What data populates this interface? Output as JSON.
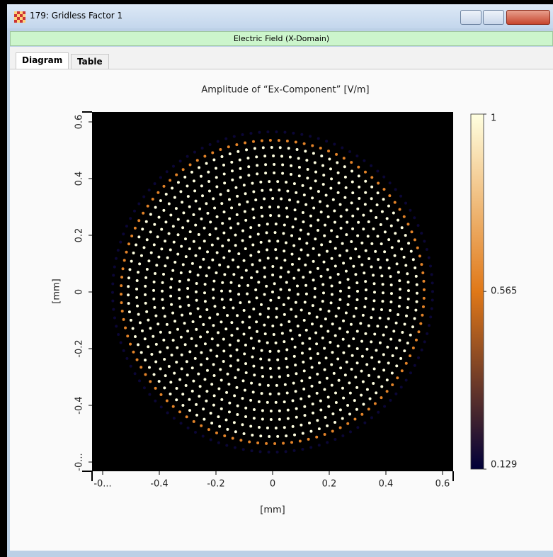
{
  "window": {
    "title": "179: Gridless Factor 1"
  },
  "header": "Electric Field (X-Domain)",
  "tabs": [
    "Diagram",
    "Table"
  ],
  "chart_data": {
    "type": "heatmap",
    "title": "Amplitude of “Ex-Component”  [V/m]",
    "x_label": "[mm]",
    "y_label": "[mm]",
    "xlim": [
      -0.6375,
      0.6375
    ],
    "ylim": [
      -0.6325,
      0.635
    ],
    "xticks": [
      {
        "value": -0.6,
        "label": "-0..."
      },
      -0.4,
      -0.2,
      0,
      0.2,
      0.4,
      0.6
    ],
    "yticks": [
      {
        "value": -0.6,
        "label": "-0..."
      },
      -0.4,
      -0.2,
      0,
      0.2,
      0.4,
      0.6
    ],
    "zlim": [
      0.129,
      1
    ],
    "zticks": [
      1,
      0.565,
      0.129
    ],
    "colormap": [
      "#000038",
      "#e07818",
      "#ffffe0"
    ],
    "background": "#000000",
    "rings": [
      {
        "radius": 0,
        "value": 1
      },
      {
        "radius": 0.03,
        "value": 1
      },
      {
        "radius": 0.06,
        "value": 1
      },
      {
        "radius": 0.09,
        "value": 1
      },
      {
        "radius": 0.12,
        "value": 1
      },
      {
        "radius": 0.15,
        "value": 1
      },
      {
        "radius": 0.18,
        "value": 1
      },
      {
        "radius": 0.21,
        "value": 1
      },
      {
        "radius": 0.24,
        "value": 1
      },
      {
        "radius": 0.27,
        "value": 1
      },
      {
        "radius": 0.3,
        "value": 1
      },
      {
        "radius": 0.33,
        "value": 1
      },
      {
        "radius": 0.36,
        "value": 1
      },
      {
        "radius": 0.39,
        "value": 1
      },
      {
        "radius": 0.42,
        "value": 1
      },
      {
        "radius": 0.45,
        "value": 1
      },
      {
        "radius": 0.48,
        "value": 1
      },
      {
        "radius": 0.51,
        "value": 1
      },
      {
        "radius": 0.535,
        "value": 0.6
      },
      {
        "radius": 0.565,
        "value": 0.15
      }
    ]
  }
}
